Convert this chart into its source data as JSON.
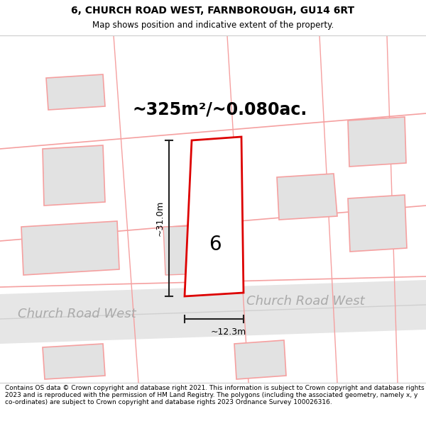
{
  "title": "6, CHURCH ROAD WEST, FARNBOROUGH, GU14 6RT",
  "subtitle": "Map shows position and indicative extent of the property.",
  "area_label": "~325m²/~0.080ac.",
  "width_label": "~12.3m",
  "height_label": "~31.0m",
  "number_label": "6",
  "road_label_left": "Church Road West",
  "road_label_right": "Church Road West",
  "footer": "Contains OS data © Crown copyright and database right 2021. This information is subject to Crown copyright and database rights 2023 and is reproduced with the permission of HM Land Registry. The polygons (including the associated geometry, namely x, y co-ordinates) are subject to Crown copyright and database rights 2023 Ordnance Survey 100026316.",
  "bg_color": "#ffffff",
  "map_bg_color": "#f7f7f7",
  "neighbor_fill": "#e2e2e2",
  "neighbor_edge": "#f5a0a0",
  "prop_edge": "#dd0000",
  "road_fill": "#e6e6e6",
  "dim_color": "#222222",
  "road_text_color": "#aaaaaa",
  "title_fontsize": 10,
  "subtitle_fontsize": 8.5,
  "area_fontsize": 18,
  "road_fontsize": 13
}
